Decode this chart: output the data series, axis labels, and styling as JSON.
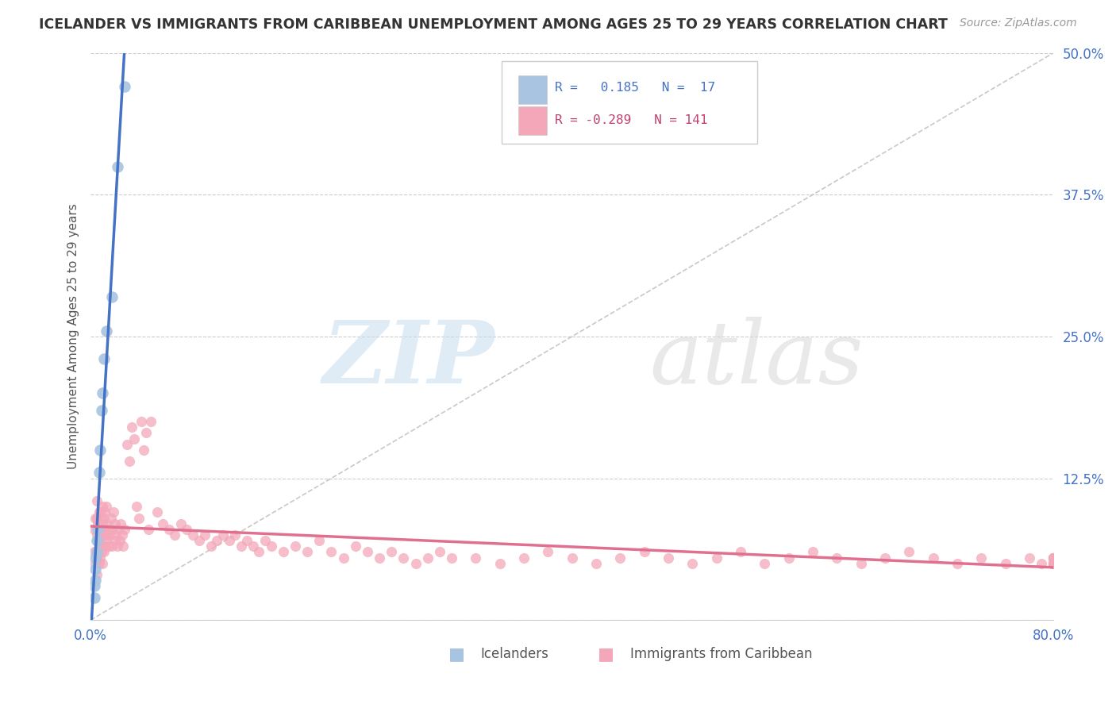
{
  "title": "ICELANDER VS IMMIGRANTS FROM CARIBBEAN UNEMPLOYMENT AMONG AGES 25 TO 29 YEARS CORRELATION CHART",
  "source": "Source: ZipAtlas.com",
  "ylabel": "Unemployment Among Ages 25 to 29 years",
  "xlim": [
    0.0,
    0.8
  ],
  "ylim": [
    0.0,
    0.5
  ],
  "yticks": [
    0.0,
    0.125,
    0.25,
    0.375,
    0.5
  ],
  "ytick_labels": [
    "",
    "12.5%",
    "25.0%",
    "37.5%",
    "50.0%"
  ],
  "icelander_R": 0.185,
  "icelander_N": 17,
  "caribbean_R": -0.289,
  "caribbean_N": 141,
  "icelander_color": "#a8c4e0",
  "caribbean_color": "#f4a7b9",
  "icelander_line_color": "#4472c4",
  "caribbean_line_color": "#e07090",
  "background_color": "#ffffff",
  "grid_color": "#cccccc",
  "icelander_x": [
    0.003,
    0.003,
    0.004,
    0.004,
    0.004,
    0.005,
    0.005,
    0.006,
    0.007,
    0.008,
    0.009,
    0.01,
    0.011,
    0.013,
    0.018,
    0.022,
    0.028
  ],
  "icelander_y": [
    0.02,
    0.03,
    0.035,
    0.045,
    0.055,
    0.06,
    0.07,
    0.08,
    0.13,
    0.15,
    0.185,
    0.2,
    0.23,
    0.255,
    0.285,
    0.4,
    0.47
  ],
  "caribbean_x": [
    0.003,
    0.003,
    0.004,
    0.004,
    0.005,
    0.005,
    0.005,
    0.005,
    0.005,
    0.006,
    0.006,
    0.006,
    0.007,
    0.007,
    0.007,
    0.007,
    0.008,
    0.008,
    0.008,
    0.008,
    0.009,
    0.009,
    0.009,
    0.01,
    0.01,
    0.01,
    0.01,
    0.01,
    0.011,
    0.011,
    0.011,
    0.012,
    0.012,
    0.012,
    0.013,
    0.013,
    0.013,
    0.014,
    0.015,
    0.015,
    0.016,
    0.017,
    0.018,
    0.018,
    0.019,
    0.02,
    0.02,
    0.021,
    0.022,
    0.023,
    0.024,
    0.025,
    0.026,
    0.027,
    0.028,
    0.03,
    0.032,
    0.034,
    0.036,
    0.038,
    0.04,
    0.042,
    0.044,
    0.046,
    0.048,
    0.05,
    0.055,
    0.06,
    0.065,
    0.07,
    0.075,
    0.08,
    0.085,
    0.09,
    0.095,
    0.1,
    0.105,
    0.11,
    0.115,
    0.12,
    0.125,
    0.13,
    0.135,
    0.14,
    0.145,
    0.15,
    0.16,
    0.17,
    0.18,
    0.19,
    0.2,
    0.21,
    0.22,
    0.23,
    0.24,
    0.25,
    0.26,
    0.27,
    0.28,
    0.29,
    0.3,
    0.32,
    0.34,
    0.36,
    0.38,
    0.4,
    0.42,
    0.44,
    0.46,
    0.48,
    0.5,
    0.52,
    0.54,
    0.56,
    0.58,
    0.6,
    0.62,
    0.64,
    0.66,
    0.68,
    0.7,
    0.72,
    0.74,
    0.76,
    0.78,
    0.79,
    0.8,
    0.8,
    0.8,
    0.8,
    0.8,
    0.8,
    0.8,
    0.8,
    0.8,
    0.8,
    0.8
  ],
  "caribbean_y": [
    0.06,
    0.08,
    0.05,
    0.09,
    0.04,
    0.06,
    0.075,
    0.09,
    0.105,
    0.055,
    0.07,
    0.085,
    0.05,
    0.065,
    0.08,
    0.095,
    0.055,
    0.068,
    0.08,
    0.095,
    0.06,
    0.075,
    0.09,
    0.05,
    0.065,
    0.075,
    0.085,
    0.1,
    0.06,
    0.075,
    0.09,
    0.065,
    0.08,
    0.095,
    0.07,
    0.085,
    0.1,
    0.075,
    0.065,
    0.08,
    0.075,
    0.09,
    0.065,
    0.08,
    0.095,
    0.07,
    0.085,
    0.075,
    0.065,
    0.08,
    0.07,
    0.085,
    0.075,
    0.065,
    0.08,
    0.155,
    0.14,
    0.17,
    0.16,
    0.1,
    0.09,
    0.175,
    0.15,
    0.165,
    0.08,
    0.175,
    0.095,
    0.085,
    0.08,
    0.075,
    0.085,
    0.08,
    0.075,
    0.07,
    0.075,
    0.065,
    0.07,
    0.075,
    0.07,
    0.075,
    0.065,
    0.07,
    0.065,
    0.06,
    0.07,
    0.065,
    0.06,
    0.065,
    0.06,
    0.07,
    0.06,
    0.055,
    0.065,
    0.06,
    0.055,
    0.06,
    0.055,
    0.05,
    0.055,
    0.06,
    0.055,
    0.055,
    0.05,
    0.055,
    0.06,
    0.055,
    0.05,
    0.055,
    0.06,
    0.055,
    0.05,
    0.055,
    0.06,
    0.05,
    0.055,
    0.06,
    0.055,
    0.05,
    0.055,
    0.06,
    0.055,
    0.05,
    0.055,
    0.05,
    0.055,
    0.05,
    0.055,
    0.05,
    0.055,
    0.05,
    0.055,
    0.05,
    0.055,
    0.05,
    0.055,
    0.05,
    0.055
  ]
}
